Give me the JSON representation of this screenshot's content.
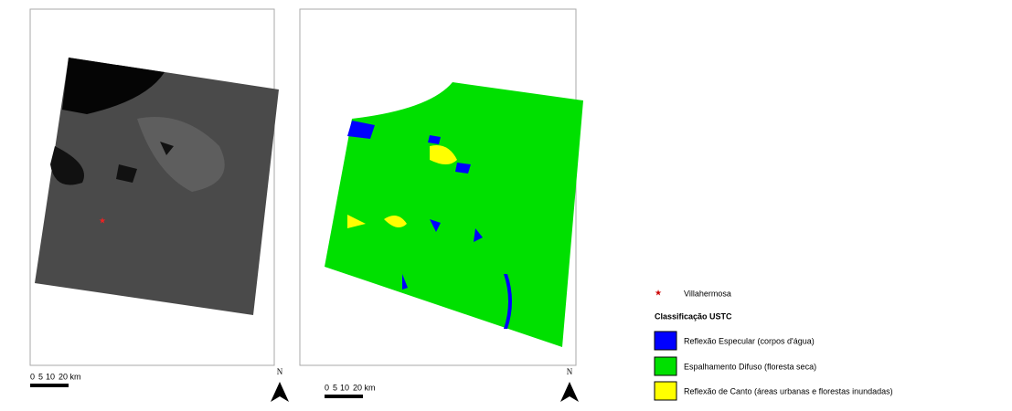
{
  "maps": [
    {
      "scale": [
        "0",
        "5",
        "10",
        "20 km"
      ],
      "north": "N"
    },
    {
      "scale": [
        "0",
        "5",
        "10",
        "20 km"
      ],
      "north": "N"
    }
  ],
  "legend": {
    "point": "Villahermosa",
    "title": "Classificação USTC",
    "items": [
      {
        "label": "Reflexão Especular (corpos d'água)",
        "color": "#0000ff"
      },
      {
        "label": "Espalhamento Difuso (floresta seca)",
        "color": "#00e000"
      },
      {
        "label": "Reflexão de Canto (áreas urbanas e florestas inundadas)",
        "color": "#ffff00"
      }
    ]
  }
}
